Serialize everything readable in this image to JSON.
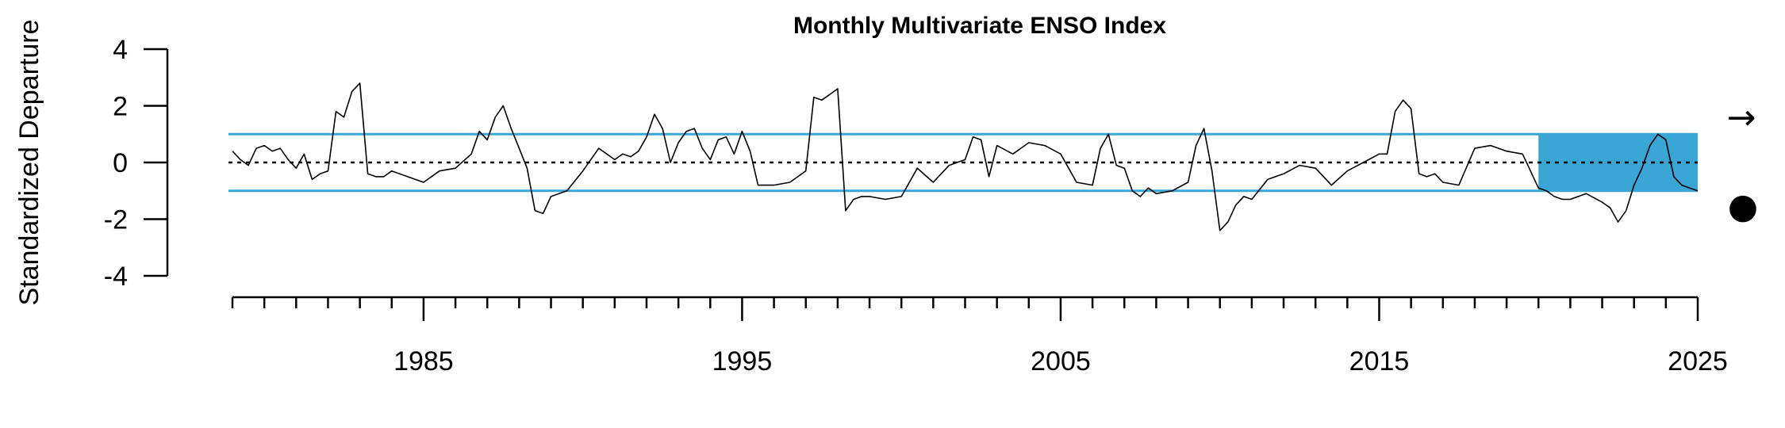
{
  "chart_data": {
    "type": "line",
    "title": "Monthly Multivariate ENSO Index",
    "ylabel": "Standardized Departure",
    "xlabel": "",
    "xlim": [
      1979,
      2025
    ],
    "ylim": [
      -4,
      4
    ],
    "yticks": [
      "4",
      "2",
      "0",
      "-2",
      "-4"
    ],
    "ytick_values": [
      4,
      2,
      0,
      -2,
      -4
    ],
    "xtick_labels": [
      "1985",
      "1995",
      "2005",
      "2015",
      "2025"
    ],
    "xtick_values": [
      1985,
      1995,
      2005,
      2015,
      2025
    ],
    "minor_xtick_start": 1979,
    "minor_xtick_end": 2025,
    "threshold_lines": [
      1,
      -1
    ],
    "zero_line": 0,
    "highlight_range": [
      2020,
      2025
    ],
    "colors": {
      "line": "#000000",
      "threshold": "#3aa6d6",
      "highlight": "#3aa6d6"
    },
    "series": [
      {
        "x": [
          1979.0,
          1979.25,
          1979.5,
          1979.75,
          1980.0,
          1980.25,
          1980.5,
          1980.75,
          1981.0,
          1981.25,
          1981.5,
          1981.75,
          1982.0,
          1982.25,
          1982.5,
          1982.75,
          1983.0,
          1983.25,
          1983.5,
          1983.75,
          1984.0,
          1984.5,
          1985.0,
          1985.5,
          1986.0,
          1986.5,
          1986.75,
          1987.0,
          1987.25,
          1987.5,
          1987.75,
          1988.0,
          1988.25,
          1988.5,
          1988.75,
          1989.0,
          1989.5,
          1990.0,
          1990.5,
          1991.0,
          1991.25,
          1991.5,
          1991.75,
          1992.0,
          1992.25,
          1992.5,
          1992.75,
          1993.0,
          1993.25,
          1993.5,
          1993.75,
          1994.0,
          1994.25,
          1994.5,
          1994.75,
          1995.0,
          1995.25,
          1995.5,
          1995.75,
          1996.0,
          1996.5,
          1997.0,
          1997.25,
          1997.5,
          1997.75,
          1998.0,
          1998.25,
          1998.5,
          1998.75,
          1999.0,
          1999.5,
          2000.0,
          2000.5,
          2001.0,
          2001.5,
          2002.0,
          2002.25,
          2002.5,
          2002.75,
          2003.0,
          2003.5,
          2004.0,
          2004.5,
          2005.0,
          2005.5,
          2006.0,
          2006.25,
          2006.5,
          2006.75,
          2007.0,
          2007.25,
          2007.5,
          2007.75,
          2008.0,
          2008.5,
          2009.0,
          2009.25,
          2009.5,
          2009.75,
          2010.0,
          2010.25,
          2010.5,
          2010.75,
          2011.0,
          2011.5,
          2012.0,
          2012.5,
          2013.0,
          2013.5,
          2014.0,
          2014.5,
          2015.0,
          2015.25,
          2015.5,
          2015.75,
          2016.0,
          2016.25,
          2016.5,
          2016.75,
          2017.0,
          2017.5,
          2018.0,
          2018.5,
          2019.0,
          2019.5,
          2020.0,
          2020.25,
          2020.5,
          2020.75,
          2021.0,
          2021.5,
          2022.0,
          2022.25,
          2022.5,
          2022.75,
          2023.0,
          2023.25,
          2023.5,
          2023.75,
          2024.0,
          2024.25,
          2024.5,
          2024.75,
          2025.0
        ],
        "y": [
          0.4,
          0.1,
          -0.1,
          0.5,
          0.6,
          0.4,
          0.5,
          0.1,
          -0.2,
          0.3,
          -0.6,
          -0.4,
          -0.3,
          1.8,
          1.6,
          2.5,
          2.8,
          -0.4,
          -0.5,
          -0.5,
          -0.3,
          -0.5,
          -0.7,
          -0.3,
          -0.2,
          0.3,
          1.1,
          0.8,
          1.6,
          2.0,
          1.2,
          0.5,
          -0.2,
          -1.7,
          -1.8,
          -1.2,
          -1.0,
          -0.3,
          0.5,
          0.1,
          0.3,
          0.2,
          0.4,
          0.9,
          1.7,
          1.2,
          0.0,
          0.7,
          1.1,
          1.2,
          0.5,
          0.1,
          0.8,
          0.9,
          0.3,
          1.1,
          0.4,
          -0.8,
          -0.8,
          -0.8,
          -0.7,
          -0.3,
          2.3,
          2.2,
          2.4,
          2.6,
          -1.7,
          -1.3,
          -1.2,
          -1.2,
          -1.3,
          -1.2,
          -0.2,
          -0.7,
          -0.1,
          0.1,
          0.9,
          0.8,
          -0.5,
          0.6,
          0.3,
          0.7,
          0.6,
          0.3,
          -0.7,
          -0.8,
          0.5,
          1.0,
          -0.1,
          -0.2,
          -1.0,
          -1.2,
          -0.9,
          -1.1,
          -1.0,
          -0.7,
          0.6,
          1.2,
          -0.3,
          -2.4,
          -2.1,
          -1.5,
          -1.2,
          -1.3,
          -0.6,
          -0.4,
          -0.1,
          -0.2,
          -0.8,
          -0.3,
          0.0,
          0.3,
          0.3,
          1.8,
          2.2,
          1.9,
          -0.4,
          -0.5,
          -0.4,
          -0.7,
          -0.8,
          0.5,
          0.6,
          0.4,
          0.3,
          -0.9,
          -1.0,
          -1.2,
          -1.3,
          -1.3,
          -1.1,
          -1.4,
          -1.6,
          -2.1,
          -1.7,
          -0.8,
          -0.2,
          0.6,
          1.0,
          0.8,
          -0.5,
          -0.8,
          -0.9,
          -1.0
        ]
      }
    ],
    "annotations": [
      "→",
      "●"
    ]
  }
}
